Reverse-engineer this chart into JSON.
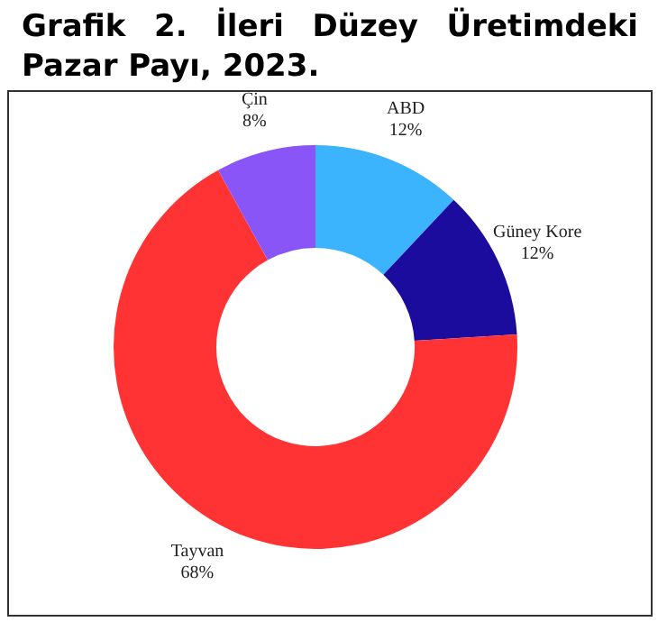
{
  "chart_data": {
    "type": "donut",
    "title": "Grafik 2. İleri Düzey Üretimdeki Pazar Payı, 2023.",
    "categories": [
      "ABD",
      "Güney Kore",
      "Tayvan",
      "Çin"
    ],
    "values": [
      12,
      12,
      68,
      8
    ],
    "value_labels": [
      "12%",
      "12%",
      "68%",
      "8%"
    ],
    "colors": [
      "#3bb3fd",
      "#1c0c9e",
      "#ff3333",
      "#8a55f7"
    ],
    "legend": false
  }
}
